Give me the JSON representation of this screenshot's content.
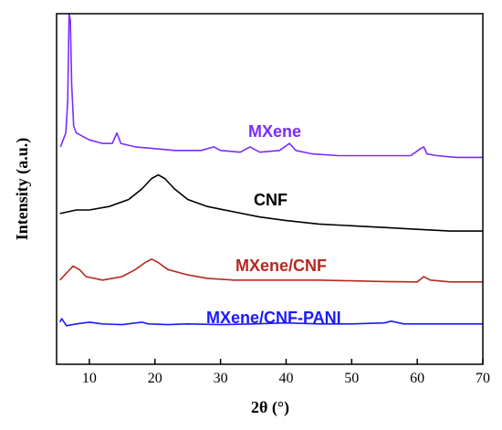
{
  "chart_data": {
    "type": "line",
    "title": "",
    "xlabel": "2θ (°)",
    "ylabel": "Intensity (a.u.)",
    "xlim": [
      5,
      70
    ],
    "x_ticks": [
      10,
      20,
      30,
      40,
      50,
      60,
      70
    ],
    "x_tick_labels": [
      "10",
      "20",
      "30",
      "40",
      "50",
      "60",
      "70"
    ],
    "y_ticks_shown": false,
    "grid": false,
    "legend": "none; series labeled directly on plot",
    "series": [
      {
        "name": "MXene",
        "color": "#7b2cff",
        "points": [
          [
            5.6,
            0.62
          ],
          [
            6.0,
            0.64
          ],
          [
            6.4,
            0.66
          ],
          [
            6.7,
            0.75
          ],
          [
            6.9,
            1.0
          ],
          [
            7.1,
            0.98
          ],
          [
            7.3,
            0.8
          ],
          [
            7.6,
            0.68
          ],
          [
            8.0,
            0.66
          ],
          [
            9,
            0.65
          ],
          [
            10,
            0.64
          ],
          [
            12,
            0.63
          ],
          [
            13.5,
            0.63
          ],
          [
            14.2,
            0.66
          ],
          [
            14.8,
            0.63
          ],
          [
            17,
            0.62
          ],
          [
            20,
            0.615
          ],
          [
            23,
            0.61
          ],
          [
            27,
            0.61
          ],
          [
            29,
            0.62
          ],
          [
            30,
            0.61
          ],
          [
            33,
            0.605
          ],
          [
            34.5,
            0.62
          ],
          [
            36,
            0.605
          ],
          [
            39,
            0.61
          ],
          [
            40.5,
            0.63
          ],
          [
            41.5,
            0.61
          ],
          [
            44,
            0.6
          ],
          [
            48,
            0.595
          ],
          [
            52,
            0.595
          ],
          [
            56,
            0.595
          ],
          [
            59,
            0.595
          ],
          [
            60.5,
            0.615
          ],
          [
            61,
            0.62
          ],
          [
            61.5,
            0.6
          ],
          [
            63,
            0.595
          ],
          [
            66,
            0.59
          ],
          [
            70,
            0.59
          ]
        ]
      },
      {
        "name": "CNF",
        "color": "#000000",
        "points": [
          [
            5.5,
            0.43
          ],
          [
            8,
            0.44
          ],
          [
            10,
            0.44
          ],
          [
            13,
            0.45
          ],
          [
            16,
            0.47
          ],
          [
            18,
            0.5
          ],
          [
            19.5,
            0.53
          ],
          [
            20.5,
            0.54
          ],
          [
            21.5,
            0.53
          ],
          [
            23,
            0.5
          ],
          [
            25,
            0.47
          ],
          [
            28,
            0.45
          ],
          [
            32,
            0.435
          ],
          [
            36,
            0.42
          ],
          [
            40,
            0.41
          ],
          [
            45,
            0.4
          ],
          [
            50,
            0.395
          ],
          [
            55,
            0.39
          ],
          [
            60,
            0.385
          ],
          [
            65,
            0.38
          ],
          [
            70,
            0.38
          ]
        ]
      },
      {
        "name": "MXene/CNF",
        "color": "#b5281f",
        "points": [
          [
            5.5,
            0.24
          ],
          [
            6.5,
            0.26
          ],
          [
            7.5,
            0.28
          ],
          [
            8.5,
            0.27
          ],
          [
            9.5,
            0.25
          ],
          [
            12,
            0.24
          ],
          [
            15,
            0.25
          ],
          [
            17,
            0.27
          ],
          [
            18.5,
            0.29
          ],
          [
            19.5,
            0.3
          ],
          [
            20.5,
            0.29
          ],
          [
            22,
            0.27
          ],
          [
            25,
            0.255
          ],
          [
            28,
            0.245
          ],
          [
            32,
            0.24
          ],
          [
            35,
            0.24
          ],
          [
            40,
            0.24
          ],
          [
            45,
            0.24
          ],
          [
            50,
            0.238
          ],
          [
            55,
            0.236
          ],
          [
            60,
            0.235
          ],
          [
            61,
            0.25
          ],
          [
            62,
            0.24
          ],
          [
            65,
            0.235
          ],
          [
            70,
            0.235
          ]
        ]
      },
      {
        "name": "MXene/CNF-PANI",
        "color": "#1a1aff",
        "points": [
          [
            5.5,
            0.12
          ],
          [
            5.8,
            0.13
          ],
          [
            6.5,
            0.11
          ],
          [
            8,
            0.115
          ],
          [
            10,
            0.12
          ],
          [
            12,
            0.115
          ],
          [
            15,
            0.113
          ],
          [
            18,
            0.12
          ],
          [
            19,
            0.115
          ],
          [
            22,
            0.113
          ],
          [
            25,
            0.115
          ],
          [
            30,
            0.113
          ],
          [
            35,
            0.115
          ],
          [
            40,
            0.118
          ],
          [
            45,
            0.115
          ],
          [
            50,
            0.115
          ],
          [
            55,
            0.118
          ],
          [
            56,
            0.123
          ],
          [
            58,
            0.115
          ],
          [
            62,
            0.115
          ],
          [
            66,
            0.115
          ],
          [
            70,
            0.115
          ]
        ]
      }
    ]
  }
}
